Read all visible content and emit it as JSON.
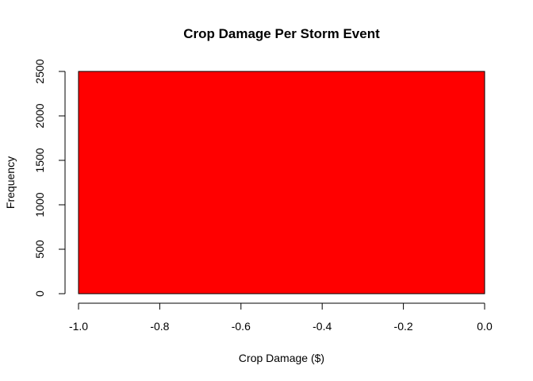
{
  "chart_data": {
    "type": "bar",
    "title": "Crop Damage Per Storm Event",
    "xlabel": "Crop Damage ($)",
    "ylabel": "Frequency",
    "xlim": [
      -1.0,
      0.0
    ],
    "ylim": [
      0,
      2500
    ],
    "x_ticks": [
      -1.0,
      -0.8,
      -0.6,
      -0.4,
      -0.2,
      0.0
    ],
    "x_tick_labels": [
      "-1.0",
      "-0.8",
      "-0.6",
      "-0.4",
      "-0.2",
      "0.0"
    ],
    "y_ticks": [
      0,
      500,
      1000,
      1500,
      2000,
      2500
    ],
    "y_tick_labels": [
      "0",
      "500",
      "1000",
      "1500",
      "2000",
      "2500"
    ],
    "bins": [
      {
        "x_start": -1.0,
        "x_end": 0.0,
        "value": 2500
      }
    ],
    "bar_color": "#ff0000",
    "border_color": "#000000",
    "grid": false,
    "legend": false
  }
}
